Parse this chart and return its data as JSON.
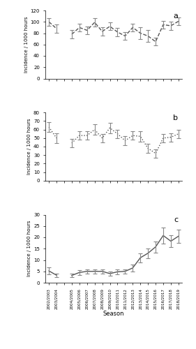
{
  "tick_labels": [
    "2002/2003",
    "2003/2004",
    "2004/2005",
    "2005/2006",
    "2006/2007",
    "2007/2008",
    "2008/2009",
    "2009/2010",
    "2010/2011",
    "2011/2012",
    "2012/2013",
    "2013/2014",
    "2014/2015",
    "2015/2016",
    "2016/2017",
    "2017/2018",
    "2018/2019"
  ],
  "a_values": [
    100,
    88,
    null,
    78,
    90,
    85,
    99,
    83,
    92,
    82,
    75,
    90,
    80,
    75,
    65,
    95,
    93,
    101
  ],
  "a_ci_lo": [
    7,
    7,
    null,
    7,
    7,
    7,
    7,
    7,
    7,
    7,
    7,
    7,
    10,
    10,
    7,
    7,
    7,
    7
  ],
  "a_ci_hi": [
    7,
    7,
    null,
    7,
    7,
    7,
    7,
    7,
    7,
    7,
    7,
    7,
    10,
    10,
    7,
    7,
    7,
    7
  ],
  "b_values": [
    63,
    50,
    null,
    44,
    53,
    53,
    60,
    50,
    62,
    55,
    47,
    53,
    52,
    38,
    32,
    50,
    51,
    55
  ],
  "b_ci_lo": [
    6,
    6,
    null,
    5,
    5,
    5,
    6,
    5,
    6,
    5,
    5,
    5,
    6,
    5,
    5,
    5,
    5,
    5
  ],
  "b_ci_hi": [
    6,
    6,
    null,
    5,
    5,
    5,
    6,
    5,
    6,
    5,
    5,
    5,
    6,
    5,
    5,
    5,
    5,
    5
  ],
  "c_values": [
    5.2,
    3.3,
    null,
    3.2,
    4.5,
    5.0,
    5.0,
    5.0,
    4.0,
    4.8,
    5.0,
    6.5,
    11.0,
    13.0,
    15.8,
    20.8,
    18.3,
    20.5
  ],
  "c_ci_lo": [
    1.5,
    0.8,
    null,
    0.8,
    1.0,
    1.0,
    1.0,
    1.0,
    0.8,
    1.0,
    1.0,
    1.5,
    2.0,
    2.2,
    2.5,
    3.5,
    2.5,
    3.0
  ],
  "c_ci_hi": [
    1.5,
    0.8,
    null,
    0.8,
    1.0,
    1.0,
    1.0,
    1.0,
    0.8,
    1.0,
    1.0,
    1.5,
    2.0,
    2.2,
    2.5,
    3.5,
    2.5,
    3.0
  ],
  "a_ylim": [
    0,
    120
  ],
  "a_yticks": [
    0,
    20,
    40,
    60,
    80,
    100,
    120
  ],
  "b_ylim": [
    0,
    80
  ],
  "b_yticks": [
    0,
    10,
    20,
    30,
    40,
    50,
    60,
    70,
    80
  ],
  "c_ylim": [
    0,
    30
  ],
  "c_yticks": [
    0,
    5,
    10,
    15,
    20,
    25,
    30
  ],
  "ylabel": "Incidence / 1000 hours",
  "xlabel": "Season",
  "line_color": "#555555",
  "eb_color": "#888888",
  "bg_color": "#ffffff"
}
